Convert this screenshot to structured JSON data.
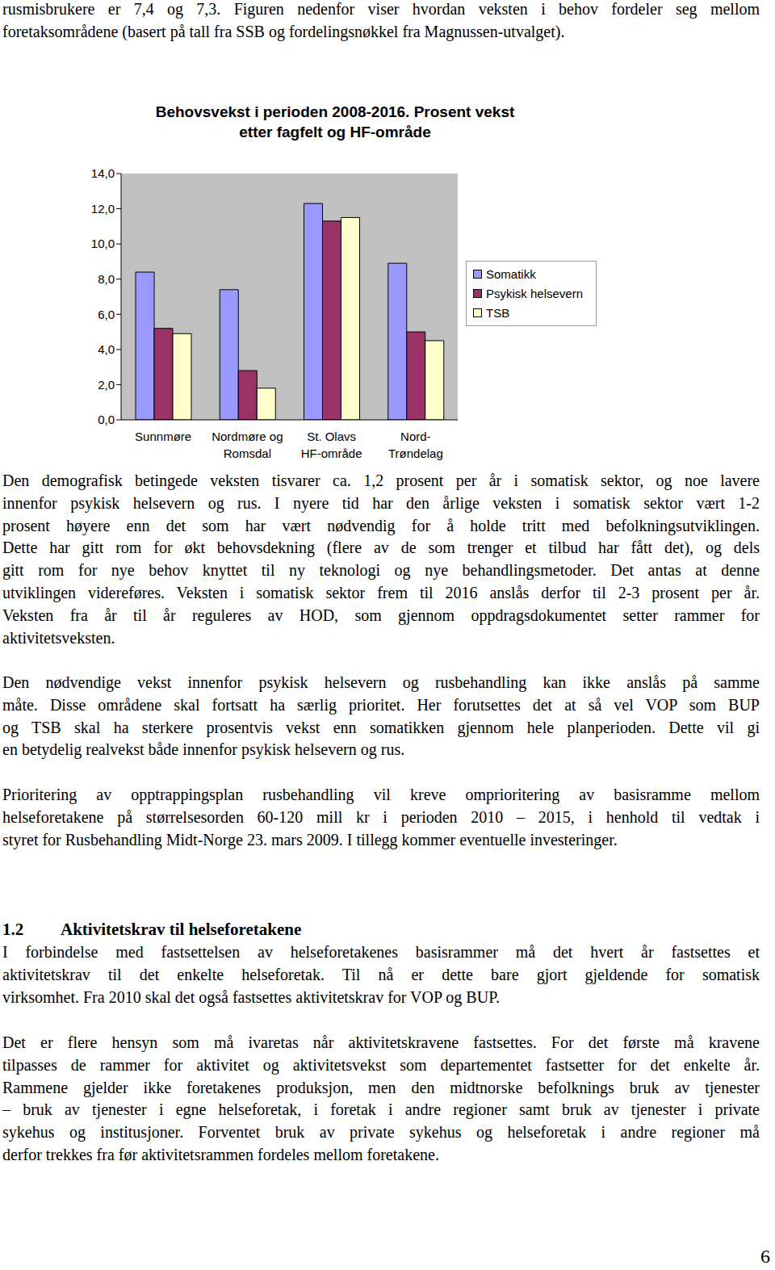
{
  "text_before": {
    "lines": [
      "rusmisbrukere er 7,4 og 7,3. Figuren nedenfor viser hvordan veksten i behov fordeler seg mellom",
      "foretaksområdene (basert på tall fra SSB og fordelingsnøkkel fra Magnussen-utvalget)."
    ]
  },
  "chart_data": {
    "type": "bar",
    "title": "Behovsvekst i perioden 2008-2016. Prosent vekst\netter fagfelt og HF-område",
    "categories": [
      "Sunnmøre",
      "Nordmøre og\nRomsdal",
      "St. Olavs\nHF-område",
      "Nord-\nTrøndelag"
    ],
    "series": [
      {
        "name": "Somatikk",
        "color": "#9999ff",
        "values": [
          8.4,
          7.4,
          12.3,
          8.9
        ]
      },
      {
        "name": "Psykisk helsevern",
        "color": "#993366",
        "values": [
          5.2,
          2.8,
          11.3,
          5.0
        ]
      },
      {
        "name": "TSB",
        "color": "#ffffcc",
        "values": [
          4.9,
          1.8,
          11.5,
          4.5
        ]
      }
    ],
    "ylim": [
      0,
      14
    ],
    "yticks": [
      {
        "value": 0,
        "label": "0,0"
      },
      {
        "value": 2,
        "label": "2,0"
      },
      {
        "value": 4,
        "label": "4,0"
      },
      {
        "value": 6,
        "label": "6,0"
      },
      {
        "value": 8,
        "label": "8,0"
      },
      {
        "value": 10,
        "label": "10,0"
      },
      {
        "value": 12,
        "label": "12,0"
      },
      {
        "value": 14,
        "label": "14,0"
      }
    ],
    "legend": "right"
  },
  "paragraphs_after_chart": [
    {
      "lines": [
        "Den demografisk betingede veksten tisvarer ca. 1,2 prosent per år i somatisk sektor, og noe lavere",
        "innenfor psykisk helsevern og rus. I nyere tid har den årlige veksten i somatisk sektor vært 1-2",
        "prosent høyere enn det som har vært nødvendig for å holde tritt med befolkningsutviklingen.",
        "Dette har gitt rom for økt behovsdekning (flere av de som trenger et tilbud har fått det), og dels",
        "gitt rom for nye behov knyttet til ny teknologi og nye behandlingsmetoder. Det antas at denne",
        "utviklingen videreføres. Veksten i somatisk sektor frem til 2016 anslås derfor til 2-3 prosent per år.",
        "Veksten fra år til år reguleres av HOD, som gjennom oppdragsdokumentet setter rammer for",
        "aktivitetsveksten."
      ]
    },
    {
      "lines": [
        "Den nødvendige vekst innenfor psykisk helsevern og rusbehandling kan ikke anslås på samme",
        "måte. Disse områdene skal fortsatt ha særlig prioritet. Her forutsettes det at så vel VOP som BUP",
        "og TSB skal ha sterkere prosentvis vekst enn somatikken gjennom hele planperioden. Dette vil gi",
        "en betydelig realvekst både innenfor psykisk helsevern og rus."
      ]
    },
    {
      "lines": [
        "Prioritering av opptrappingsplan rusbehandling vil kreve omprioritering av basisramme mellom",
        "helseforetakene på størrelsesorden 60-120 mill kr i perioden 2010 – 2015, i henhold til vedtak i",
        "styret for Rusbehandling Midt-Norge 23. mars 2009. I tillegg kommer eventuelle investeringer."
      ]
    }
  ],
  "heading": {
    "number": "1.2",
    "title": "Aktivitetskrav til helseforetakene"
  },
  "paragraphs_after_heading": [
    {
      "lines": [
        "I forbindelse med fastsettelsen av helseforetakenes basisrammer må det hvert år fastsettes et",
        "aktivitetskrav til det enkelte helseforetak. Til nå er dette bare gjort gjeldende for somatisk",
        "virksomhet. Fra 2010 skal det også fastsettes aktivitetskrav for VOP og BUP."
      ]
    },
    {
      "lines": [
        "Det er flere hensyn som må ivaretas når aktivitetskravene fastsettes. For det første må kravene",
        "tilpasses de rammer for aktivitet og aktivitetsvekst som departementet fastsetter for det enkelte år.",
        "Rammene gjelder ikke foretakenes produksjon, men den midtnorske befolknings bruk av tjenester",
        "– bruk av tjenester i egne helseforetak, i foretak i andre regioner samt bruk av tjenester i private",
        "sykehus og institusjoner. Forventet bruk av private sykehus og helseforetak i andre regioner må",
        "derfor trekkes fra før aktivitetsrammen fordeles mellom foretakene."
      ]
    }
  ],
  "page_number": "6"
}
